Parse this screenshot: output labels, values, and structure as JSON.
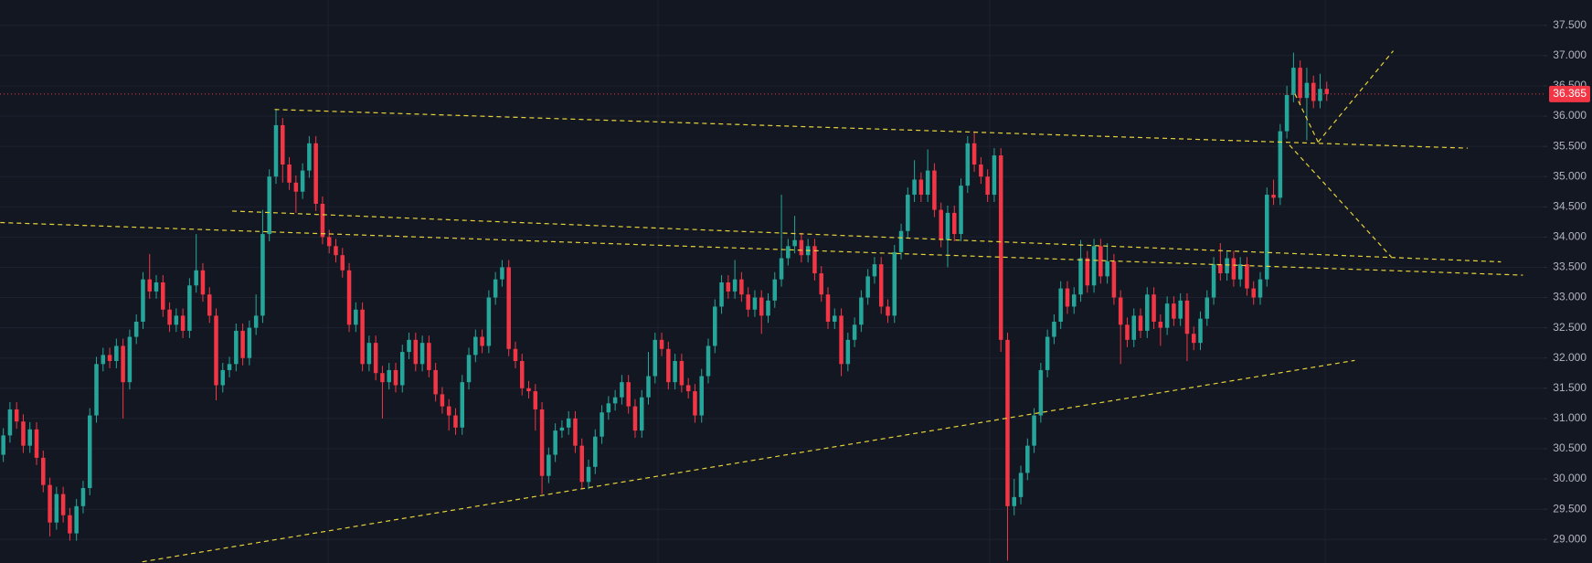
{
  "chart_data": {
    "type": "candlestick",
    "colors": {
      "up": "#26a69a",
      "down": "#f23645",
      "trendline": "#e6d23a"
    },
    "xlim": [
      -0.5,
      231.6
    ],
    "ylim": [
      28.61,
      37.92
    ],
    "yticks": [
      {
        "value": 29,
        "label": "29.000"
      },
      {
        "value": 29.5,
        "label": "29.500"
      },
      {
        "value": 30,
        "label": "30.000"
      },
      {
        "value": 30.5,
        "label": "30.500"
      },
      {
        "value": 31,
        "label": "31.000"
      },
      {
        "value": 31.5,
        "label": "31.500"
      },
      {
        "value": 32,
        "label": "32.000"
      },
      {
        "value": 32.5,
        "label": "32.500"
      },
      {
        "value": 33,
        "label": "33.000"
      },
      {
        "value": 33.5,
        "label": "33.500"
      },
      {
        "value": 34,
        "label": "34.000"
      },
      {
        "value": 34.5,
        "label": "34.500"
      },
      {
        "value": 35,
        "label": "35.000"
      },
      {
        "value": 35.5,
        "label": "35.500"
      },
      {
        "value": 36,
        "label": "36.000"
      },
      {
        "value": 36.5,
        "label": "36.500"
      },
      {
        "value": 37,
        "label": "37.000"
      },
      {
        "value": 37.5,
        "label": "37.500"
      }
    ],
    "grid": true,
    "last_price": 36.365,
    "ohlc": [
      [
        30.4,
        30.84,
        30.28,
        30.72
      ],
      [
        30.72,
        31.27,
        30.6,
        31.15
      ],
      [
        31.15,
        31.27,
        30.83,
        30.95
      ],
      [
        30.95,
        31.07,
        30.43,
        30.55
      ],
      [
        30.55,
        30.94,
        30.43,
        30.82
      ],
      [
        30.82,
        30.94,
        30.23,
        30.35
      ],
      [
        30.35,
        30.47,
        29.78,
        29.9
      ],
      [
        29.9,
        30.02,
        29.05,
        29.28
      ],
      [
        29.28,
        29.87,
        29.16,
        29.75
      ],
      [
        29.75,
        29.87,
        29.28,
        29.4
      ],
      [
        29.4,
        29.52,
        28.98,
        29.1
      ],
      [
        29.1,
        29.67,
        28.98,
        29.55
      ],
      [
        29.55,
        29.97,
        29.43,
        29.85
      ],
      [
        29.85,
        31.17,
        29.73,
        31.05
      ],
      [
        31.05,
        32.02,
        30.93,
        31.9
      ],
      [
        31.9,
        32.17,
        31.78,
        32.05
      ],
      [
        32.05,
        32.17,
        31.83,
        31.95
      ],
      [
        31.95,
        32.32,
        31.83,
        32.2
      ],
      [
        32.2,
        32.32,
        31.0,
        31.6
      ],
      [
        31.6,
        32.47,
        31.48,
        32.35
      ],
      [
        32.35,
        32.72,
        32.23,
        32.6
      ],
      [
        32.6,
        33.42,
        32.48,
        33.3
      ],
      [
        33.3,
        33.72,
        32.98,
        33.1
      ],
      [
        33.1,
        33.37,
        32.98,
        33.25
      ],
      [
        33.25,
        33.37,
        32.68,
        32.8
      ],
      [
        32.8,
        32.92,
        32.43,
        32.55
      ],
      [
        32.55,
        32.82,
        32.43,
        32.7
      ],
      [
        32.7,
        32.82,
        32.33,
        32.45
      ],
      [
        32.45,
        33.32,
        32.33,
        33.2
      ],
      [
        33.2,
        34.05,
        33.08,
        33.45
      ],
      [
        33.45,
        33.57,
        32.93,
        33.05
      ],
      [
        33.05,
        33.17,
        32.58,
        32.7
      ],
      [
        32.7,
        32.82,
        31.3,
        31.55
      ],
      [
        31.55,
        31.92,
        31.43,
        31.8
      ],
      [
        31.8,
        32.02,
        31.68,
        31.9
      ],
      [
        31.9,
        32.57,
        31.78,
        32.45
      ],
      [
        32.45,
        32.57,
        31.88,
        32.0
      ],
      [
        32.0,
        32.62,
        31.88,
        32.5
      ],
      [
        32.5,
        33.05,
        32.38,
        32.7
      ],
      [
        32.7,
        34.45,
        32.58,
        34.05
      ],
      [
        34.05,
        35.12,
        33.93,
        35.0
      ],
      [
        35.0,
        36.1,
        34.88,
        35.85
      ],
      [
        35.85,
        35.97,
        34.9,
        35.2
      ],
      [
        35.2,
        35.32,
        34.78,
        34.9
      ],
      [
        34.9,
        35.02,
        34.4,
        34.75
      ],
      [
        34.75,
        35.22,
        34.63,
        35.1
      ],
      [
        35.1,
        35.67,
        34.98,
        35.55
      ],
      [
        35.55,
        35.67,
        34.43,
        34.55
      ],
      [
        34.55,
        34.67,
        33.88,
        34.0
      ],
      [
        34.0,
        34.12,
        33.73,
        33.85
      ],
      [
        33.85,
        33.97,
        33.58,
        33.7
      ],
      [
        33.7,
        33.82,
        33.33,
        33.45
      ],
      [
        33.45,
        33.57,
        32.43,
        32.55
      ],
      [
        32.55,
        32.92,
        32.43,
        32.8
      ],
      [
        32.8,
        32.92,
        31.78,
        31.9
      ],
      [
        31.9,
        32.37,
        31.78,
        32.25
      ],
      [
        32.25,
        32.37,
        31.63,
        31.75
      ],
      [
        31.75,
        31.87,
        31.0,
        31.6
      ],
      [
        31.6,
        31.92,
        31.48,
        31.8
      ],
      [
        31.8,
        31.92,
        31.43,
        31.55
      ],
      [
        31.55,
        32.22,
        31.43,
        32.1
      ],
      [
        32.1,
        32.42,
        31.98,
        32.3
      ],
      [
        32.3,
        32.42,
        31.78,
        31.9
      ],
      [
        31.9,
        32.37,
        31.78,
        32.25
      ],
      [
        32.25,
        32.37,
        31.68,
        31.8
      ],
      [
        31.8,
        31.92,
        31.28,
        31.4
      ],
      [
        31.4,
        31.52,
        31.08,
        31.2
      ],
      [
        31.2,
        31.32,
        30.8,
        31.05
      ],
      [
        31.05,
        31.17,
        30.73,
        30.85
      ],
      [
        30.85,
        31.72,
        30.73,
        31.6
      ],
      [
        31.6,
        32.17,
        31.48,
        32.05
      ],
      [
        32.05,
        32.47,
        31.93,
        32.35
      ],
      [
        32.35,
        32.47,
        32.08,
        32.2
      ],
      [
        32.2,
        33.12,
        32.08,
        33.0
      ],
      [
        33.0,
        33.42,
        32.88,
        33.3
      ],
      [
        33.3,
        33.62,
        33.18,
        33.5
      ],
      [
        33.5,
        33.62,
        32.03,
        32.15
      ],
      [
        32.15,
        32.27,
        31.83,
        31.95
      ],
      [
        31.95,
        32.07,
        31.38,
        31.5
      ],
      [
        31.5,
        31.62,
        31.33,
        31.45
      ],
      [
        31.45,
        31.57,
        30.8,
        31.15
      ],
      [
        31.15,
        31.27,
        29.75,
        30.05
      ],
      [
        30.05,
        30.52,
        29.93,
        30.4
      ],
      [
        30.4,
        30.92,
        30.28,
        30.8
      ],
      [
        30.8,
        30.97,
        30.68,
        30.85
      ],
      [
        30.85,
        31.12,
        30.73,
        31.0
      ],
      [
        31.0,
        31.12,
        30.43,
        30.55
      ],
      [
        30.55,
        30.67,
        29.83,
        29.95
      ],
      [
        29.95,
        30.32,
        29.83,
        30.2
      ],
      [
        30.2,
        30.82,
        30.08,
        30.7
      ],
      [
        30.7,
        31.22,
        30.58,
        31.1
      ],
      [
        31.1,
        31.37,
        30.98,
        31.25
      ],
      [
        31.25,
        31.47,
        31.13,
        31.35
      ],
      [
        31.35,
        31.72,
        31.23,
        31.6
      ],
      [
        31.6,
        31.72,
        31.08,
        31.2
      ],
      [
        31.2,
        31.32,
        30.68,
        30.8
      ],
      [
        30.8,
        31.47,
        30.68,
        31.35
      ],
      [
        31.35,
        32.1,
        31.23,
        31.7
      ],
      [
        31.7,
        32.42,
        31.58,
        32.3
      ],
      [
        32.3,
        32.42,
        32.03,
        32.15
      ],
      [
        32.15,
        32.27,
        31.48,
        31.6
      ],
      [
        31.6,
        32.07,
        31.48,
        31.95
      ],
      [
        31.95,
        32.07,
        31.43,
        31.55
      ],
      [
        31.55,
        31.67,
        31.33,
        31.45
      ],
      [
        31.45,
        31.57,
        30.93,
        31.05
      ],
      [
        31.05,
        31.82,
        30.93,
        31.7
      ],
      [
        31.7,
        32.32,
        31.58,
        32.2
      ],
      [
        32.2,
        32.97,
        32.08,
        32.85
      ],
      [
        32.85,
        33.37,
        32.73,
        33.25
      ],
      [
        33.25,
        33.37,
        32.98,
        33.1
      ],
      [
        33.1,
        33.62,
        32.98,
        33.3
      ],
      [
        33.3,
        33.42,
        32.93,
        33.05
      ],
      [
        33.05,
        33.17,
        32.68,
        32.8
      ],
      [
        32.8,
        33.12,
        32.68,
        33.0
      ],
      [
        33.0,
        33.12,
        32.4,
        32.7
      ],
      [
        32.7,
        33.07,
        32.58,
        32.95
      ],
      [
        32.95,
        33.42,
        32.83,
        33.3
      ],
      [
        33.3,
        34.7,
        33.18,
        33.65
      ],
      [
        33.65,
        33.97,
        33.53,
        33.85
      ],
      [
        33.85,
        34.35,
        33.73,
        33.95
      ],
      [
        33.95,
        34.07,
        33.58,
        33.7
      ],
      [
        33.7,
        33.97,
        33.58,
        33.85
      ],
      [
        33.85,
        33.97,
        33.28,
        33.4
      ],
      [
        33.4,
        33.52,
        32.93,
        33.05
      ],
      [
        33.05,
        33.17,
        32.48,
        32.6
      ],
      [
        32.6,
        32.82,
        32.48,
        32.7
      ],
      [
        32.7,
        32.82,
        31.7,
        31.9
      ],
      [
        31.9,
        32.42,
        31.78,
        32.3
      ],
      [
        32.3,
        32.67,
        32.18,
        32.55
      ],
      [
        32.55,
        33.12,
        32.43,
        33.0
      ],
      [
        33.0,
        33.47,
        32.88,
        33.35
      ],
      [
        33.35,
        33.67,
        33.23,
        33.55
      ],
      [
        33.55,
        33.67,
        32.73,
        32.85
      ],
      [
        32.85,
        32.97,
        32.58,
        32.7
      ],
      [
        32.7,
        33.87,
        32.58,
        33.75
      ],
      [
        33.75,
        34.22,
        33.63,
        34.1
      ],
      [
        34.1,
        34.82,
        33.98,
        34.7
      ],
      [
        34.7,
        35.27,
        34.58,
        34.95
      ],
      [
        34.95,
        35.07,
        34.58,
        34.7
      ],
      [
        34.7,
        35.45,
        34.58,
        35.1
      ],
      [
        35.1,
        35.22,
        34.33,
        34.45
      ],
      [
        34.45,
        34.57,
        33.83,
        33.95
      ],
      [
        33.95,
        34.52,
        33.5,
        34.4
      ],
      [
        34.4,
        34.52,
        33.93,
        34.05
      ],
      [
        34.05,
        34.97,
        33.93,
        34.85
      ],
      [
        34.85,
        35.67,
        34.73,
        35.55
      ],
      [
        35.55,
        35.75,
        35.08,
        35.2
      ],
      [
        35.2,
        35.32,
        34.88,
        35.0
      ],
      [
        35.0,
        35.12,
        34.58,
        34.7
      ],
      [
        34.7,
        35.47,
        34.58,
        35.35
      ],
      [
        35.35,
        35.47,
        32.1,
        32.3
      ],
      [
        32.3,
        32.42,
        28.65,
        29.55
      ],
      [
        29.55,
        30.0,
        29.4,
        29.7
      ],
      [
        29.7,
        30.22,
        29.58,
        30.1
      ],
      [
        30.1,
        30.67,
        29.98,
        30.55
      ],
      [
        30.55,
        31.17,
        30.43,
        31.05
      ],
      [
        31.05,
        31.92,
        30.93,
        31.8
      ],
      [
        31.8,
        32.47,
        31.68,
        32.35
      ],
      [
        32.35,
        32.72,
        32.23,
        32.6
      ],
      [
        32.6,
        33.27,
        32.48,
        33.15
      ],
      [
        33.15,
        33.27,
        32.73,
        32.85
      ],
      [
        32.85,
        33.17,
        32.73,
        33.05
      ],
      [
        33.05,
        33.95,
        32.93,
        33.65
      ],
      [
        33.65,
        33.77,
        33.08,
        33.2
      ],
      [
        33.2,
        33.97,
        33.08,
        33.85
      ],
      [
        33.85,
        33.97,
        33.23,
        33.35
      ],
      [
        33.35,
        33.9,
        33.23,
        33.6
      ],
      [
        33.6,
        33.72,
        32.88,
        33.0
      ],
      [
        33.0,
        33.12,
        31.9,
        32.55
      ],
      [
        32.55,
        32.67,
        32.18,
        32.3
      ],
      [
        32.3,
        32.82,
        32.18,
        32.7
      ],
      [
        32.7,
        32.82,
        32.33,
        32.45
      ],
      [
        32.45,
        33.17,
        32.33,
        33.05
      ],
      [
        33.05,
        33.17,
        32.48,
        32.6
      ],
      [
        32.6,
        32.72,
        32.2,
        32.5
      ],
      [
        32.5,
        33.02,
        32.38,
        32.9
      ],
      [
        32.9,
        33.02,
        32.53,
        32.65
      ],
      [
        32.65,
        33.07,
        32.53,
        32.95
      ],
      [
        32.95,
        33.07,
        31.95,
        32.4
      ],
      [
        32.4,
        32.52,
        32.13,
        32.25
      ],
      [
        32.25,
        32.77,
        32.13,
        32.65
      ],
      [
        32.65,
        33.12,
        32.53,
        33.0
      ],
      [
        33.0,
        33.67,
        32.88,
        33.55
      ],
      [
        33.55,
        33.9,
        33.28,
        33.4
      ],
      [
        33.4,
        33.77,
        33.28,
        33.65
      ],
      [
        33.65,
        33.77,
        33.18,
        33.3
      ],
      [
        33.3,
        33.67,
        33.18,
        33.55
      ],
      [
        33.55,
        33.67,
        33.03,
        33.15
      ],
      [
        33.15,
        33.27,
        32.88,
        33.0
      ],
      [
        33.0,
        33.42,
        32.88,
        33.3
      ],
      [
        33.3,
        34.82,
        33.18,
        34.7
      ],
      [
        34.7,
        34.95,
        34.53,
        34.65
      ],
      [
        34.65,
        35.87,
        34.53,
        35.75
      ],
      [
        35.75,
        36.5,
        35.63,
        36.35
      ],
      [
        36.35,
        37.05,
        36.23,
        36.8
      ],
      [
        36.8,
        36.92,
        36.18,
        36.3
      ],
      [
        36.3,
        36.8,
        35.6,
        36.55
      ],
      [
        36.55,
        36.67,
        36.13,
        36.25
      ],
      [
        36.25,
        36.7,
        36.13,
        36.45
      ],
      [
        36.45,
        36.57,
        36.25,
        36.365
      ]
    ],
    "trendlines": [
      [
        [
          40.8,
          36.11
        ],
        [
          220.2,
          35.47
        ]
      ],
      [
        [
          -0.46,
          34.24
        ],
        [
          228.5,
          33.37
        ]
      ],
      [
        [
          34.4,
          34.43
        ],
        [
          225.2,
          33.59
        ]
      ],
      [
        [
          20.9,
          28.63
        ],
        [
          203.2,
          31.96
        ]
      ],
      [
        [
          193.4,
          35.52
        ],
        [
          208.7,
          33.67
        ]
      ],
      [
        [
          197.7,
          35.57
        ],
        [
          209.0,
          37.08
        ]
      ],
      [
        [
          194.2,
          36.37
        ],
        [
          197.7,
          35.57
        ]
      ]
    ]
  }
}
